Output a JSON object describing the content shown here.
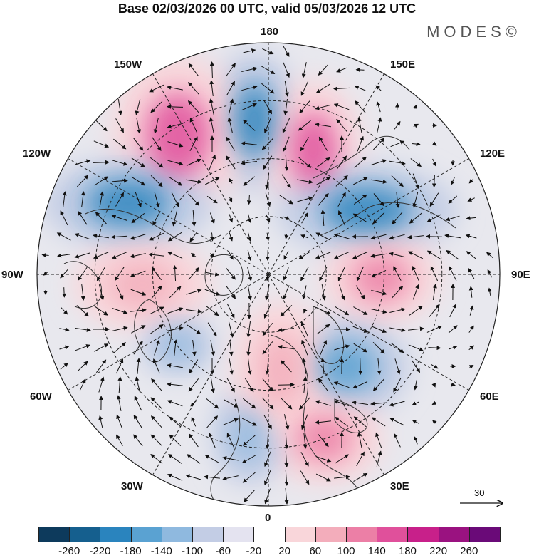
{
  "title": "Base 02/03/2026 00 UTC, valid 05/03/2026 12 UTC",
  "brand": "MODES©",
  "longitude_labels": {
    "top": "180",
    "bottom": "0",
    "left": "90W",
    "right": "90E",
    "upper_left": "150W",
    "upper_left_2": "120W",
    "upper_right": "150E",
    "upper_right_2": "120E",
    "lower_left": "60W",
    "lower_left_2": "30W",
    "lower_right": "60E",
    "lower_right_2": "30E"
  },
  "reference_vector": {
    "label": "30"
  },
  "colorbar": {
    "colors": [
      "#0d3a5c",
      "#155f8e",
      "#2a84be",
      "#5aa2d2",
      "#8fb9df",
      "#c3cde5",
      "#e4e3f0",
      "#ffffff",
      "#f9d6da",
      "#f3adbb",
      "#ec7fa6",
      "#e0509b",
      "#c8208a",
      "#9a1280",
      "#6a0a78"
    ],
    "ticks": [
      "-260",
      "-220",
      "-180",
      "-140",
      "-100",
      "-60",
      "-20",
      "20",
      "60",
      "100",
      "140",
      "180",
      "220",
      "260"
    ]
  },
  "anomalies": [
    {
      "name": "neg-180-north",
      "color": "#2a84be",
      "intensity": -220
    },
    {
      "name": "pos-150w",
      "color": "#e0509b",
      "intensity": 180
    },
    {
      "name": "pos-150e",
      "color": "#e0509b",
      "intensity": 180
    },
    {
      "name": "neg-120w",
      "color": "#2a84be",
      "intensity": -180
    },
    {
      "name": "neg-120e",
      "color": "#2a84be",
      "intensity": -180
    },
    {
      "name": "pos-90e",
      "color": "#ec7fa6",
      "intensity": 140
    },
    {
      "name": "neg-60e",
      "color": "#5aa2d2",
      "intensity": -140
    },
    {
      "name": "pos-30e",
      "color": "#ec7fa6",
      "intensity": 140
    },
    {
      "name": "neg-30w",
      "color": "#8fb9df",
      "intensity": -100
    },
    {
      "name": "pos-90w",
      "color": "#f3adbb",
      "intensity": 100
    },
    {
      "name": "neg-75w",
      "color": "#8fb9df",
      "intensity": -100
    },
    {
      "name": "pos-0",
      "color": "#f3adbb",
      "intensity": 100
    }
  ]
}
